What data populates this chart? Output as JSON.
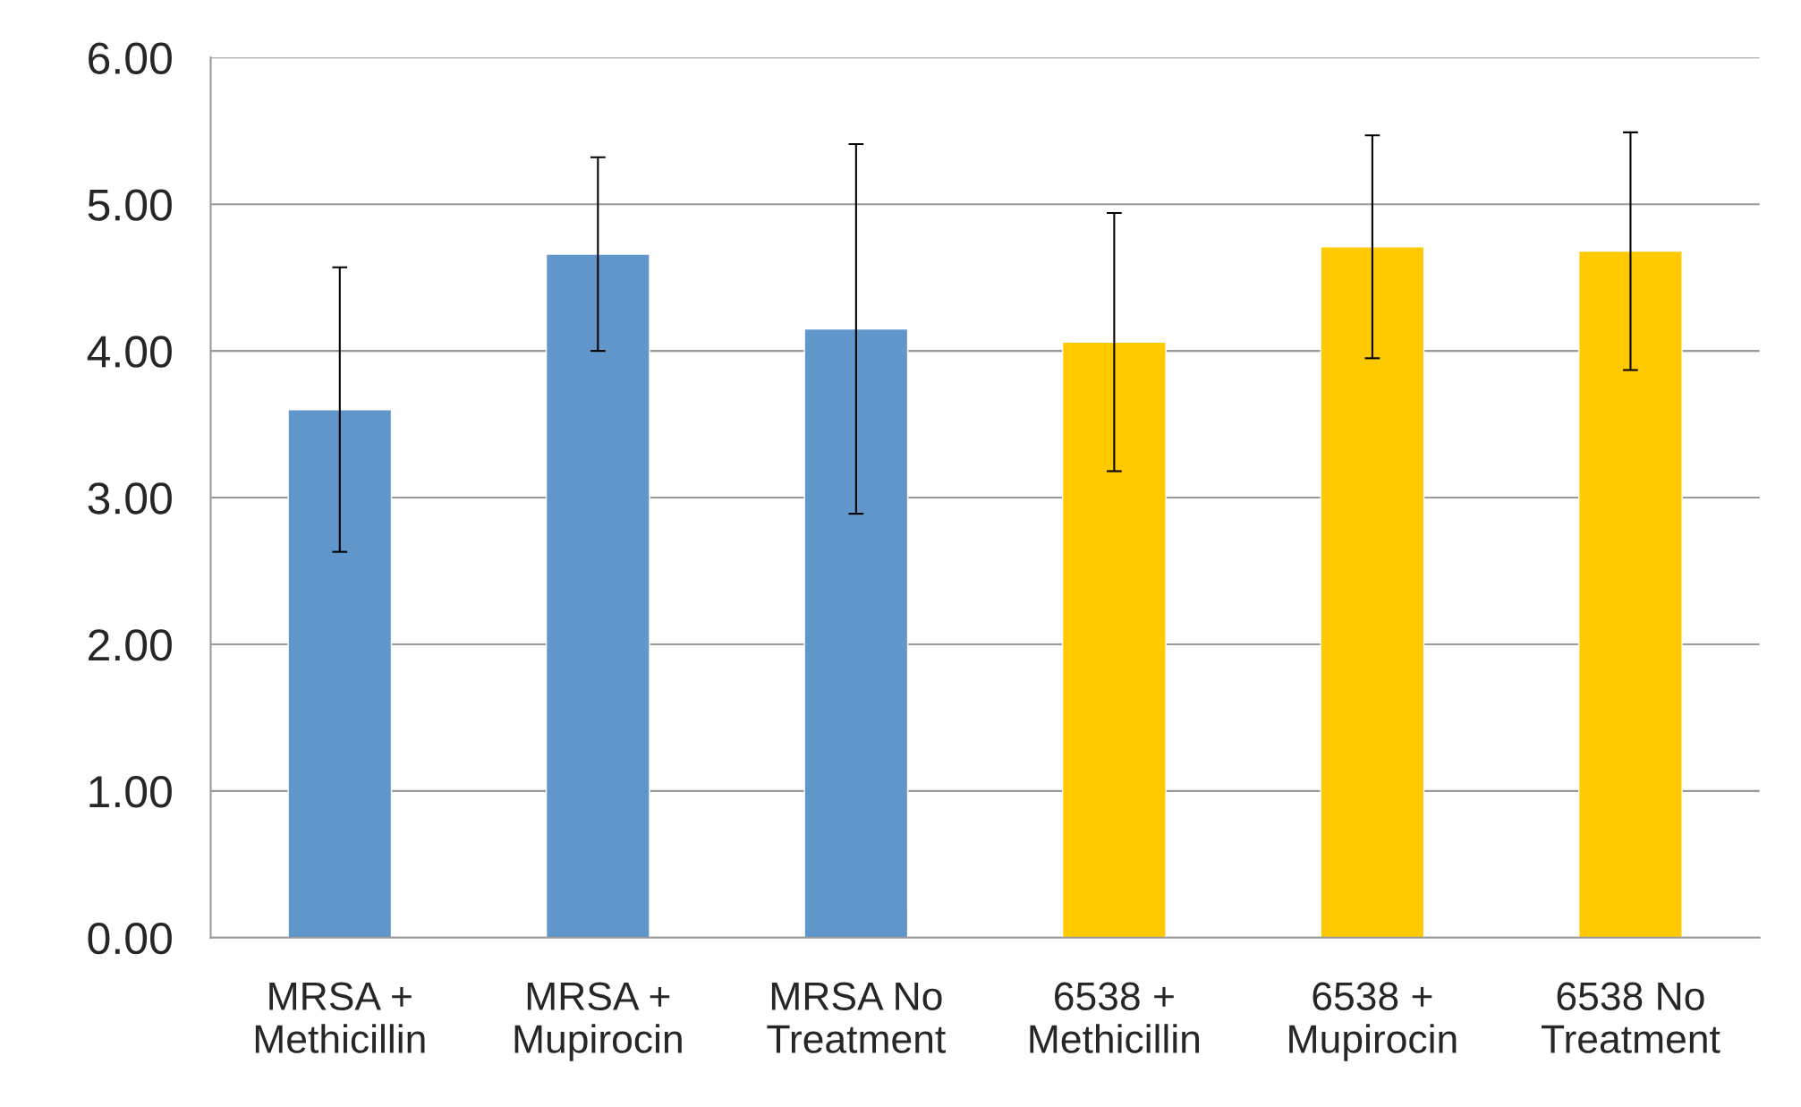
{
  "chart_data": {
    "type": "bar",
    "categories": [
      "MRSA +\nMethicillin",
      "MRSA +\nMupirocin",
      "MRSA No\nTreatment",
      "6538 +\nMethicillin",
      "6538 +\nMupirocin",
      "6538 No\nTreatment"
    ],
    "values": [
      3.6,
      4.66,
      4.15,
      4.06,
      4.71,
      4.68
    ],
    "colors": [
      "#6096c9",
      "#6096c9",
      "#6096c9",
      "#ffc900",
      "#ffc900",
      "#ffc900"
    ],
    "errors": [
      0.97,
      0.66,
      1.26,
      0.88,
      0.76,
      0.81
    ],
    "ylim": [
      0,
      6
    ],
    "yticks": [
      {
        "value": 0,
        "label": "0.00"
      },
      {
        "value": 1,
        "label": "1.00"
      },
      {
        "value": 2,
        "label": "2.00"
      },
      {
        "value": 3,
        "label": "3.00"
      },
      {
        "value": 4,
        "label": "4.00"
      },
      {
        "value": 5,
        "label": "5.00"
      },
      {
        "value": 6,
        "label": "6.00"
      }
    ],
    "grid": "y"
  }
}
